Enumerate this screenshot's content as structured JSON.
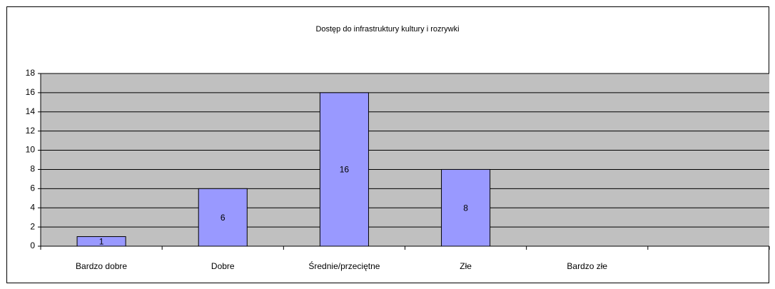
{
  "chart_data": {
    "type": "bar",
    "title": "Dostęp do infrastruktury kultury i rozrywki",
    "categories": [
      "Bardzo dobre",
      "Dobre",
      "Średnie/przeciętne",
      "Złe",
      "Bardzo złe",
      null
    ],
    "values": [
      1,
      6,
      16,
      8,
      null,
      null
    ],
    "color": "#9999ff",
    "plot_background": "#c0c0c0",
    "ylim": [
      0,
      18
    ],
    "yticks": [
      0,
      2,
      4,
      6,
      8,
      10,
      12,
      14,
      16,
      18
    ],
    "grid": true
  }
}
